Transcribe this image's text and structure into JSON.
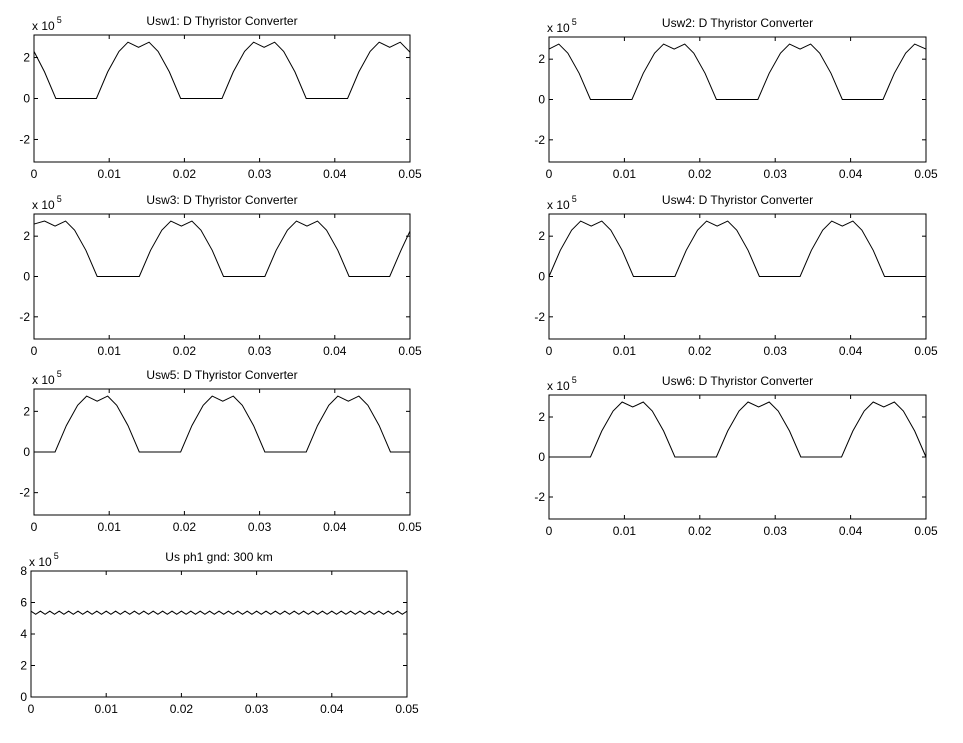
{
  "chart_data": [
    {
      "type": "line",
      "title": "Usw1: D Thyristor Converter",
      "y_scale": "x 10",
      "y_scale_exponent": "5",
      "xlim": [
        0,
        0.05
      ],
      "xticks": [
        0,
        0.01,
        0.02,
        0.03,
        0.04,
        0.05
      ],
      "ylim": [
        -3.1,
        3.1
      ],
      "yticks": [
        -2,
        0,
        2
      ],
      "x": [
        0,
        0.0014,
        0.0029,
        0.0083,
        0.0098,
        0.0113,
        0.0125,
        0.0139,
        0.0153,
        0.0165,
        0.018,
        0.0195,
        0.025,
        0.0265,
        0.028,
        0.0292,
        0.0306,
        0.032,
        0.0332,
        0.0347,
        0.0362,
        0.0417,
        0.0432,
        0.0447,
        0.0459,
        0.0473,
        0.0487,
        0.0499,
        0.05
      ],
      "series": [
        {
          "color": "#000000",
          "values": [
            2.3,
            1.3,
            0,
            0,
            1.3,
            2.3,
            2.75,
            2.5,
            2.75,
            2.3,
            1.3,
            0,
            0,
            1.3,
            2.3,
            2.75,
            2.5,
            2.75,
            2.3,
            1.3,
            0,
            0,
            1.3,
            2.3,
            2.75,
            2.5,
            2.75,
            2.3,
            2.25
          ]
        }
      ]
    },
    {
      "type": "line",
      "title": "Usw2: D Thyristor Converter",
      "y_scale": "x 10",
      "y_scale_exponent": "5",
      "xlim": [
        0,
        0.05
      ],
      "xticks": [
        0,
        0.01,
        0.02,
        0.03,
        0.04,
        0.05
      ],
      "ylim": [
        -3.1,
        3.1
      ],
      "yticks": [
        -2,
        0,
        2
      ],
      "x": [
        0,
        0.0013,
        0.0025,
        0.004,
        0.0055,
        0.011,
        0.0125,
        0.014,
        0.0152,
        0.0166,
        0.018,
        0.0192,
        0.0207,
        0.0222,
        0.0277,
        0.0292,
        0.0307,
        0.0319,
        0.0333,
        0.0347,
        0.0359,
        0.0374,
        0.0389,
        0.0443,
        0.0458,
        0.0473,
        0.0485,
        0.05
      ],
      "series": [
        {
          "color": "#000000",
          "values": [
            2.5,
            2.75,
            2.3,
            1.3,
            0,
            0,
            1.3,
            2.3,
            2.75,
            2.5,
            2.75,
            2.3,
            1.3,
            0,
            0,
            1.3,
            2.3,
            2.75,
            2.5,
            2.75,
            2.3,
            1.3,
            0,
            0,
            1.3,
            2.3,
            2.75,
            2.5
          ]
        }
      ]
    },
    {
      "type": "line",
      "title": "Usw3: D Thyristor Converter",
      "y_scale": "x 10",
      "y_scale_exponent": "5",
      "xlim": [
        0,
        0.05
      ],
      "xticks": [
        0,
        0.01,
        0.02,
        0.03,
        0.04,
        0.05
      ],
      "ylim": [
        -3.1,
        3.1
      ],
      "yticks": [
        -2,
        0,
        2
      ],
      "x": [
        0,
        0.0014,
        0.0028,
        0.0042,
        0.0054,
        0.0069,
        0.0084,
        0.014,
        0.0155,
        0.017,
        0.0182,
        0.0196,
        0.021,
        0.0222,
        0.0237,
        0.0252,
        0.0307,
        0.0322,
        0.0337,
        0.0349,
        0.0363,
        0.0377,
        0.0389,
        0.0404,
        0.0419,
        0.0473,
        0.0488,
        0.05
      ],
      "series": [
        {
          "color": "#000000",
          "values": [
            2.6,
            2.75,
            2.5,
            2.75,
            2.3,
            1.3,
            0,
            0,
            1.3,
            2.3,
            2.75,
            2.5,
            2.75,
            2.3,
            1.3,
            0,
            0,
            1.3,
            2.3,
            2.75,
            2.5,
            2.75,
            2.3,
            1.3,
            0,
            0,
            1.3,
            2.25
          ]
        }
      ]
    },
    {
      "type": "line",
      "title": "Usw4: D Thyristor Converter",
      "y_scale": "x 10",
      "y_scale_exponent": "5",
      "xlim": [
        0,
        0.05
      ],
      "xticks": [
        0,
        0.01,
        0.02,
        0.03,
        0.04,
        0.05
      ],
      "ylim": [
        -3.1,
        3.1
      ],
      "yticks": [
        -2,
        0,
        2
      ],
      "x": [
        0,
        0.0015,
        0.003,
        0.0042,
        0.0056,
        0.007,
        0.0082,
        0.0097,
        0.0112,
        0.0167,
        0.0182,
        0.0197,
        0.0209,
        0.0223,
        0.0237,
        0.0249,
        0.0264,
        0.0279,
        0.0333,
        0.0348,
        0.0363,
        0.0375,
        0.0389,
        0.0403,
        0.0415,
        0.043,
        0.0445,
        0.05
      ],
      "series": [
        {
          "color": "#000000",
          "values": [
            0,
            1.3,
            2.3,
            2.75,
            2.5,
            2.75,
            2.3,
            1.3,
            0,
            0,
            1.3,
            2.3,
            2.75,
            2.5,
            2.75,
            2.3,
            1.3,
            0,
            0,
            1.3,
            2.3,
            2.75,
            2.5,
            2.75,
            2.3,
            1.3,
            0,
            0
          ]
        }
      ]
    },
    {
      "type": "line",
      "title": "Usw5: D Thyristor Converter",
      "y_scale": "x 10",
      "y_scale_exponent": "5",
      "xlim": [
        0,
        0.05
      ],
      "xticks": [
        0,
        0.01,
        0.02,
        0.03,
        0.04,
        0.05
      ],
      "ylim": [
        -3.1,
        3.1
      ],
      "yticks": [
        -2,
        0,
        2
      ],
      "x": [
        0,
        0.0028,
        0.0043,
        0.0058,
        0.007,
        0.0084,
        0.0098,
        0.011,
        0.0125,
        0.014,
        0.0195,
        0.021,
        0.0225,
        0.0237,
        0.0251,
        0.0265,
        0.0277,
        0.0292,
        0.0307,
        0.0362,
        0.0377,
        0.0392,
        0.0404,
        0.0418,
        0.0432,
        0.0444,
        0.0459,
        0.0474,
        0.05
      ],
      "series": [
        {
          "color": "#000000",
          "values": [
            0,
            0,
            1.3,
            2.3,
            2.75,
            2.5,
            2.75,
            2.3,
            1.3,
            0,
            0,
            1.3,
            2.3,
            2.75,
            2.5,
            2.75,
            2.3,
            1.3,
            0,
            0,
            1.3,
            2.3,
            2.75,
            2.5,
            2.75,
            2.3,
            1.3,
            0,
            0
          ]
        }
      ]
    },
    {
      "type": "line",
      "title": "Usw6: D Thyristor Converter",
      "y_scale": "x 10",
      "y_scale_exponent": "5",
      "xlim": [
        0,
        0.05
      ],
      "xticks": [
        0,
        0.01,
        0.02,
        0.03,
        0.04,
        0.05
      ],
      "ylim": [
        -3.1,
        3.1
      ],
      "yticks": [
        -2,
        0,
        2
      ],
      "x": [
        0,
        0.0055,
        0.007,
        0.0085,
        0.0097,
        0.0111,
        0.0125,
        0.0137,
        0.0152,
        0.0167,
        0.0222,
        0.0237,
        0.0252,
        0.0264,
        0.0278,
        0.0292,
        0.0304,
        0.0319,
        0.0334,
        0.0388,
        0.0403,
        0.0418,
        0.043,
        0.0444,
        0.0458,
        0.047,
        0.0485,
        0.05
      ],
      "series": [
        {
          "color": "#000000",
          "values": [
            0,
            0,
            1.3,
            2.3,
            2.75,
            2.5,
            2.75,
            2.3,
            1.3,
            0,
            0,
            1.3,
            2.3,
            2.75,
            2.5,
            2.75,
            2.3,
            1.3,
            0,
            0,
            1.3,
            2.3,
            2.75,
            2.5,
            2.75,
            2.3,
            1.3,
            0
          ]
        }
      ]
    },
    {
      "type": "line",
      "title": "Us ph1 gnd: 300 km",
      "y_scale": "x 10",
      "y_scale_exponent": "5",
      "xlim": [
        0,
        0.05
      ],
      "xticks": [
        0,
        0.01,
        0.02,
        0.03,
        0.04,
        0.05
      ],
      "ylim": [
        0,
        8
      ],
      "yticks": [
        0,
        2,
        4,
        6,
        8
      ],
      "x": [
        0,
        0.000625,
        0.00125,
        0.001875,
        0.0025,
        0.003125,
        0.00375,
        0.004375,
        0.005,
        0.005625,
        0.00625,
        0.006875,
        0.0075,
        0.008125,
        0.00875,
        0.009375,
        0.01,
        0.010625,
        0.01125,
        0.011875,
        0.0125,
        0.013125,
        0.01375,
        0.014375,
        0.015,
        0.015625,
        0.01625,
        0.016875,
        0.0175,
        0.018125,
        0.01875,
        0.019375,
        0.02,
        0.020625,
        0.02125,
        0.021875,
        0.0225,
        0.023125,
        0.02375,
        0.024375,
        0.025,
        0.025625,
        0.02625,
        0.026875,
        0.0275,
        0.028125,
        0.02875,
        0.029375,
        0.03,
        0.030625,
        0.03125,
        0.031875,
        0.0325,
        0.033125,
        0.03375,
        0.034375,
        0.035,
        0.035625,
        0.03625,
        0.036875,
        0.0375,
        0.038125,
        0.03875,
        0.039375,
        0.04,
        0.040625,
        0.04125,
        0.041875,
        0.0425,
        0.043125,
        0.04375,
        0.044375,
        0.045,
        0.045625,
        0.04625,
        0.046875,
        0.0475,
        0.048125,
        0.04875,
        0.049375,
        0.05
      ],
      "series": [
        {
          "color": "#000000",
          "values": [
            5.45,
            5.25,
            5.45,
            5.25,
            5.45,
            5.25,
            5.45,
            5.25,
            5.45,
            5.25,
            5.45,
            5.25,
            5.45,
            5.25,
            5.45,
            5.25,
            5.45,
            5.25,
            5.45,
            5.25,
            5.45,
            5.25,
            5.45,
            5.25,
            5.45,
            5.25,
            5.45,
            5.25,
            5.45,
            5.25,
            5.45,
            5.25,
            5.45,
            5.25,
            5.45,
            5.25,
            5.45,
            5.25,
            5.45,
            5.25,
            5.45,
            5.25,
            5.45,
            5.25,
            5.45,
            5.25,
            5.45,
            5.25,
            5.45,
            5.25,
            5.45,
            5.25,
            5.45,
            5.25,
            5.45,
            5.25,
            5.45,
            5.25,
            5.45,
            5.25,
            5.45,
            5.25,
            5.45,
            5.25,
            5.45,
            5.25,
            5.45,
            5.25,
            5.45,
            5.25,
            5.45,
            5.25,
            5.45,
            5.25,
            5.45,
            5.25,
            5.45,
            5.25,
            5.45,
            5.25,
            5.45
          ]
        }
      ]
    }
  ]
}
